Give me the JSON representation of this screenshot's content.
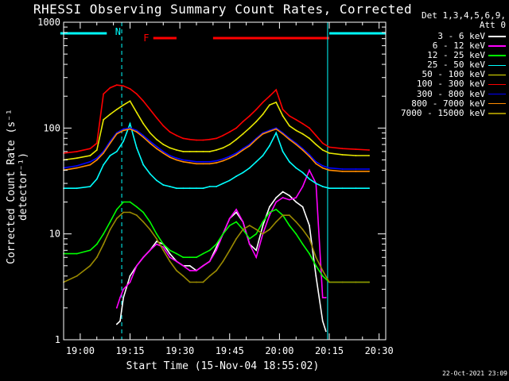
{
  "title": "RHESSI Observing Summary Count Rates, Corrected",
  "detectors": [
    "Det 1,3,4,5,6,9,",
    "Att 0"
  ],
  "timestamp": "22-Oct-2021 23:09",
  "flags": {
    "n_label": "N",
    "f_label": "F"
  },
  "chart_data": {
    "type": "line",
    "title": "RHESSI Observing Summary Count Rates, Corrected",
    "xlabel": "Start Time (15-Nov-04 18:55:02)",
    "ylabel": "Corrected Count Rate (s⁻¹ detector⁻¹)",
    "y_scale": "log",
    "ylim": [
      1,
      1000
    ],
    "xlim": [
      "18:55",
      "20:32"
    ],
    "x_ticks": [
      "19:00",
      "19:15",
      "19:30",
      "19:45",
      "20:00",
      "20:15",
      "20:30"
    ],
    "y_ticks": [
      "1",
      "10",
      "100",
      "1000"
    ],
    "legend_position": "right",
    "x_unit": "minutes after 18:55",
    "series": [
      {
        "name": "3 - 6 keV",
        "color": "#ffffff",
        "x": [
          16,
          17,
          18,
          20,
          22,
          24,
          26,
          28,
          30,
          32,
          34,
          36,
          38,
          40,
          42,
          44,
          46,
          48,
          50,
          52,
          54,
          56,
          58,
          60,
          62,
          64,
          66,
          68,
          70,
          72,
          74,
          76,
          78,
          79
        ],
        "y": [
          1.4,
          1.5,
          2.5,
          4,
          5,
          6,
          7,
          8.5,
          8,
          6.5,
          5.5,
          5,
          5,
          4.5,
          5,
          5.5,
          7.5,
          10,
          14,
          16,
          13,
          8,
          7,
          12,
          18,
          22,
          25,
          23,
          20,
          18,
          12,
          4,
          1.5,
          1.2
        ]
      },
      {
        "name": "6 - 12 keV",
        "color": "#ff00ff",
        "x": [
          16,
          17,
          18,
          20,
          22,
          24,
          26,
          28,
          30,
          32,
          34,
          36,
          38,
          40,
          42,
          44,
          46,
          48,
          50,
          52,
          54,
          56,
          58,
          60,
          62,
          64,
          66,
          68,
          70,
          72,
          74,
          76,
          78,
          79
        ],
        "y": [
          2,
          2.5,
          3,
          3.5,
          5,
          6,
          7,
          8,
          7.5,
          6,
          5.5,
          5,
          4.5,
          4.5,
          5,
          5.5,
          7,
          10,
          14,
          17,
          13,
          8,
          6,
          10,
          15,
          20,
          22,
          21,
          22,
          28,
          40,
          30,
          2.5,
          2.5
        ]
      },
      {
        "name": "12 - 25 keV",
        "color": "#00ff00",
        "x": [
          0,
          4,
          8,
          10,
          12,
          14,
          16,
          18,
          20,
          22,
          24,
          26,
          28,
          30,
          32,
          34,
          36,
          38,
          40,
          42,
          44,
          46,
          48,
          50,
          52,
          54,
          56,
          58,
          60,
          62,
          64,
          66,
          68,
          70,
          72,
          74,
          76,
          78,
          80,
          84,
          88,
          92
        ],
        "y": [
          6.5,
          6.5,
          7,
          8,
          10,
          13,
          17,
          20,
          20,
          18,
          16,
          13,
          10,
          8,
          7,
          6.5,
          6,
          6,
          6,
          6.5,
          7,
          8,
          10,
          12,
          13,
          11,
          9,
          10,
          13,
          16,
          17,
          15,
          12,
          10,
          8,
          6.5,
          5,
          4,
          3.5,
          3.5,
          3.5,
          3.5
        ]
      },
      {
        "name": "25 - 50 keV",
        "color": "#00ffff",
        "x": [
          0,
          4,
          8,
          10,
          12,
          14,
          16,
          18,
          20,
          22,
          24,
          26,
          28,
          30,
          32,
          34,
          36,
          38,
          40,
          42,
          44,
          46,
          48,
          50,
          52,
          54,
          56,
          58,
          60,
          62,
          64,
          66,
          68,
          70,
          72,
          74,
          76,
          78,
          80,
          84,
          88,
          92
        ],
        "y": [
          27,
          27,
          28,
          33,
          45,
          55,
          60,
          75,
          110,
          65,
          45,
          37,
          32,
          29,
          28,
          27,
          27,
          27,
          27,
          27,
          28,
          28,
          30,
          32,
          35,
          38,
          42,
          48,
          55,
          68,
          90,
          60,
          48,
          42,
          38,
          33,
          30,
          28,
          27,
          27,
          27,
          27
        ]
      },
      {
        "name": "50 - 100 keV",
        "color": "#e8e800",
        "x": [
          0,
          4,
          8,
          10,
          12,
          14,
          16,
          18,
          20,
          22,
          24,
          26,
          28,
          30,
          32,
          34,
          36,
          38,
          40,
          42,
          44,
          46,
          48,
          50,
          52,
          54,
          56,
          58,
          60,
          62,
          64,
          66,
          68,
          70,
          72,
          74,
          76,
          78,
          80,
          84,
          88,
          92
        ],
        "y": [
          50,
          52,
          55,
          62,
          120,
          135,
          150,
          165,
          180,
          140,
          110,
          90,
          78,
          70,
          65,
          62,
          60,
          60,
          60,
          60,
          60,
          62,
          65,
          70,
          78,
          88,
          100,
          115,
          135,
          165,
          175,
          130,
          105,
          95,
          88,
          80,
          70,
          62,
          58,
          56,
          55,
          55
        ]
      },
      {
        "name": "100 - 300 keV",
        "color": "#ff0000",
        "x": [
          0,
          4,
          8,
          10,
          12,
          14,
          16,
          18,
          20,
          22,
          24,
          26,
          28,
          30,
          32,
          34,
          36,
          38,
          40,
          42,
          44,
          46,
          48,
          50,
          52,
          54,
          56,
          58,
          60,
          62,
          64,
          66,
          68,
          70,
          72,
          74,
          76,
          78,
          80,
          84,
          88,
          92
        ],
        "y": [
          58,
          60,
          64,
          72,
          210,
          240,
          255,
          250,
          235,
          210,
          180,
          150,
          125,
          105,
          92,
          85,
          80,
          78,
          77,
          77,
          78,
          80,
          85,
          92,
          100,
          115,
          130,
          150,
          175,
          200,
          230,
          150,
          130,
          120,
          110,
          100,
          85,
          72,
          66,
          64,
          63,
          62
        ]
      },
      {
        "name": "300 - 800 keV",
        "color": "#0000ff",
        "x": [
          0,
          4,
          8,
          10,
          12,
          14,
          16,
          18,
          20,
          22,
          24,
          26,
          28,
          30,
          32,
          34,
          36,
          38,
          40,
          42,
          44,
          46,
          48,
          50,
          52,
          54,
          56,
          58,
          60,
          62,
          64,
          66,
          68,
          70,
          72,
          74,
          76,
          78,
          80,
          84,
          88,
          92
        ],
        "y": [
          42,
          44,
          48,
          52,
          60,
          75,
          90,
          98,
          100,
          95,
          85,
          75,
          67,
          60,
          55,
          52,
          50,
          49,
          48,
          48,
          48,
          49,
          51,
          54,
          58,
          64,
          70,
          80,
          90,
          95,
          100,
          90,
          80,
          72,
          64,
          56,
          48,
          44,
          42,
          41,
          41,
          41
        ]
      },
      {
        "name": "800 - 7000 keV",
        "color": "#ff8c00",
        "x": [
          0,
          4,
          8,
          10,
          12,
          14,
          16,
          18,
          20,
          22,
          24,
          26,
          28,
          30,
          32,
          34,
          36,
          38,
          40,
          42,
          44,
          46,
          48,
          50,
          52,
          54,
          56,
          58,
          60,
          62,
          64,
          66,
          68,
          70,
          72,
          74,
          76,
          78,
          80,
          84,
          88,
          92
        ],
        "y": [
          40,
          42,
          45,
          50,
          58,
          72,
          88,
          95,
          98,
          92,
          82,
          72,
          64,
          58,
          53,
          50,
          48,
          47,
          46,
          46,
          46,
          47,
          49,
          52,
          56,
          62,
          68,
          78,
          88,
          93,
          98,
          88,
          78,
          70,
          62,
          54,
          46,
          42,
          40,
          39,
          39,
          39
        ]
      },
      {
        "name": "7000 - 15000 keV",
        "color": "#9a8a00",
        "x": [
          0,
          4,
          8,
          10,
          12,
          14,
          16,
          18,
          20,
          22,
          24,
          26,
          28,
          30,
          32,
          34,
          36,
          38,
          40,
          42,
          44,
          46,
          48,
          50,
          52,
          54,
          56,
          58,
          60,
          62,
          64,
          66,
          68,
          70,
          72,
          74,
          76,
          78,
          80,
          84,
          88,
          92
        ],
        "y": [
          3.5,
          4,
          5,
          6,
          8,
          11,
          14,
          16,
          16,
          15,
          13,
          11,
          9,
          7,
          5.5,
          4.5,
          4,
          3.5,
          3.5,
          3.5,
          4,
          4.5,
          5.5,
          7,
          9,
          11,
          12,
          11,
          10,
          11,
          13,
          15,
          15,
          13,
          11,
          9,
          6,
          4.5,
          3.5,
          3.5,
          3.5,
          3.5
        ]
      }
    ]
  }
}
